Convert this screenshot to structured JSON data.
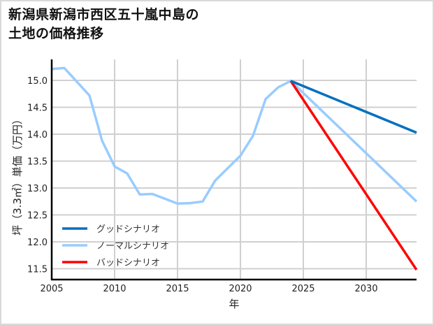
{
  "title": "新潟県新潟市西区五十嵐中島の\n土地の価格推移",
  "chart_data": {
    "type": "line",
    "title": "新潟県新潟市西区五十嵐中島の土地の価格推移",
    "xlabel": "年",
    "ylabel": "坪（3.3㎡）単価（万円）",
    "xlim": [
      2005,
      2034
    ],
    "ylim": [
      11.3,
      15.4
    ],
    "x_ticks": [
      2005,
      2010,
      2015,
      2020,
      2025,
      2030
    ],
    "y_ticks": [
      11.5,
      12.0,
      12.5,
      13.0,
      13.5,
      14.0,
      14.5,
      15.0
    ],
    "y_tick_labels": [
      "11.5",
      "12.0",
      "12.5",
      "13.0",
      "13.5",
      "14.0",
      "14.5",
      "15.0"
    ],
    "grid": true,
    "legend_position": "lower left",
    "series": [
      {
        "name": "グッドシナリオ",
        "color": "#0070c0",
        "x": [
          2024,
          2034
        ],
        "values": [
          14.99,
          14.03
        ]
      },
      {
        "name": "ノーマルシナリオ",
        "color": "#99ccff",
        "x": [
          2005,
          2006,
          2008,
          2009,
          2010,
          2011,
          2012,
          2013,
          2015,
          2016,
          2017,
          2018,
          2020,
          2021,
          2022,
          2023,
          2024,
          2034
        ],
        "values": [
          15.21,
          15.23,
          14.72,
          13.88,
          13.4,
          13.27,
          12.88,
          12.89,
          12.71,
          12.72,
          12.75,
          13.14,
          13.6,
          13.97,
          14.65,
          14.87,
          14.99,
          12.75
        ]
      },
      {
        "name": "バッドシナリオ",
        "color": "#ff0000",
        "x": [
          2024,
          2034
        ],
        "values": [
          14.99,
          11.48
        ]
      }
    ]
  }
}
